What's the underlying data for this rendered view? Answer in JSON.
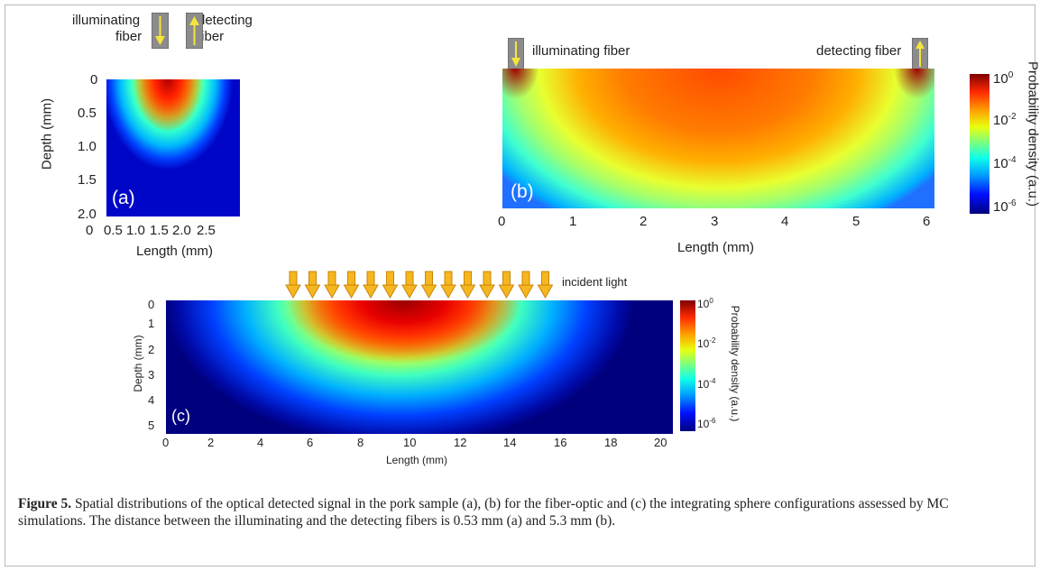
{
  "figure": {
    "caption_label": "Figure 5.",
    "caption_text": " Spatial distributions of the optical detected signal in the pork sample (a), (b) for the fiber-optic and (c) the integrating sphere configurations assessed by MC simulations. The distance between the illuminating and the detecting fibers is 0.53 mm (a) and 5.3 mm (b)."
  },
  "panel_a": {
    "letter": "(a)",
    "illum_1": "illuminating",
    "illum_2": "fiber",
    "detect_1": "detecting",
    "detect_2": "fiber",
    "ylabel": "Depth (mm)",
    "xlabel": "Length (mm)",
    "yticks": [
      "0",
      "0.5",
      "1.0",
      "1.5",
      "2.0"
    ],
    "xticks": [
      "0",
      "0.5",
      "1.0",
      "1.5",
      "2.0",
      "2.5"
    ]
  },
  "panel_b": {
    "letter": "(b)",
    "illum": "illuminating fiber",
    "detect": "detecting fiber",
    "xlabel": "Length (mm)",
    "xticks": [
      "0",
      "1",
      "2",
      "3",
      "4",
      "5",
      "6"
    ],
    "cbar_label": "Probability density (a.u.)",
    "cbar_ticks": [
      {
        "base": "10",
        "exp": "0"
      },
      {
        "base": "10",
        "exp": "-2"
      },
      {
        "base": "10",
        "exp": "-4"
      },
      {
        "base": "10",
        "exp": "-6"
      }
    ]
  },
  "panel_c": {
    "letter": "(c)",
    "incident": "incident light",
    "ylabel": "Depth (mm)",
    "xlabel": "Length (mm)",
    "yticks": [
      "0",
      "1",
      "2",
      "3",
      "4",
      "5"
    ],
    "xticks": [
      "0",
      "2",
      "4",
      "6",
      "8",
      "10",
      "12",
      "14",
      "16",
      "18",
      "20"
    ],
    "cbar_label": "Probability density (a.u.)",
    "cbar_ticks": [
      {
        "base": "10",
        "exp": "0"
      },
      {
        "base": "10",
        "exp": "-2"
      },
      {
        "base": "10",
        "exp": "-4"
      },
      {
        "base": "10",
        "exp": "-6"
      }
    ],
    "arrow_count": 14
  }
}
